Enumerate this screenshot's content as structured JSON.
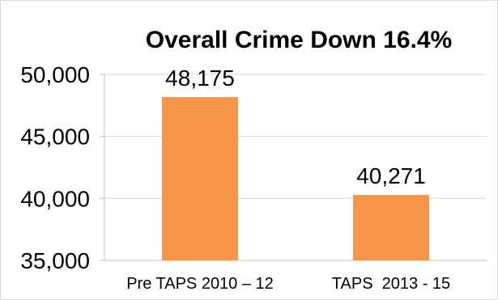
{
  "chart_data": {
    "type": "bar",
    "title": "Overall Crime Down 16.4%",
    "xlabel": "",
    "ylabel": "",
    "categories": [
      "Pre TAPS 2010 – 12",
      "TAPS  2013 - 15"
    ],
    "values": [
      48175,
      40271
    ],
    "value_labels": [
      "48,175",
      "40,271"
    ],
    "ylim": [
      35000,
      50000
    ],
    "yticks": [
      35000,
      40000,
      45000,
      50000
    ],
    "ytick_labels": [
      "35,000",
      "40,000",
      "45,000",
      "50,000"
    ],
    "grid": true,
    "legend": "none",
    "bar_color": "#F79646",
    "grid_color": "#d9d9d9",
    "axis_color": "#bfbfbf"
  }
}
